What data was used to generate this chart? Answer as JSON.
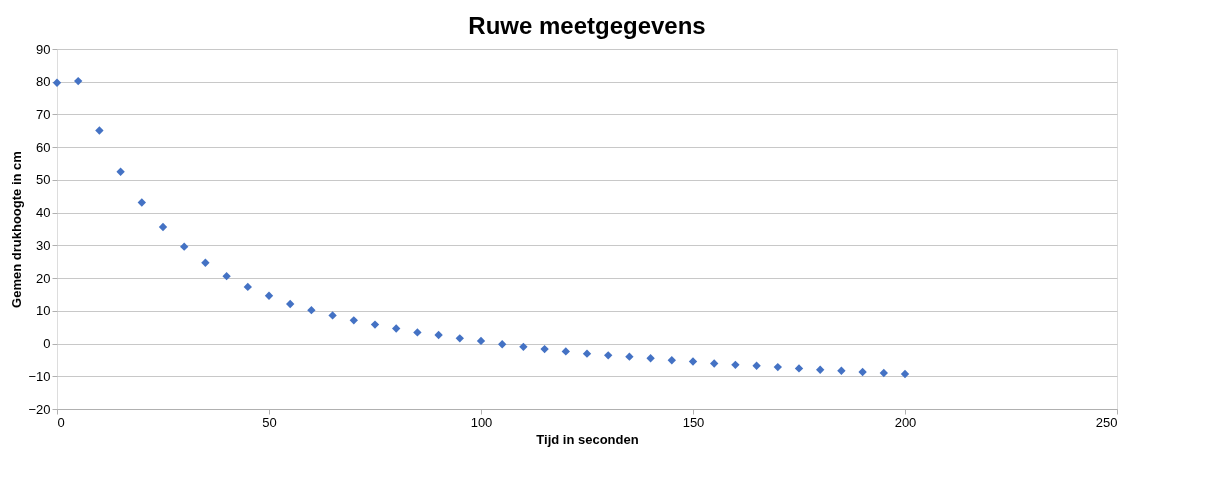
{
  "chart_data": {
    "type": "scatter",
    "title": "Ruwe meetgegevens",
    "xlabel": "Tijd in seconden",
    "ylabel": "Gemen drukhoogte in cm",
    "x": [
      0,
      5,
      10,
      15,
      20,
      25,
      30,
      35,
      40,
      45,
      50,
      55,
      60,
      65,
      70,
      75,
      80,
      85,
      90,
      95,
      100,
      105,
      110,
      115,
      120,
      125,
      130,
      135,
      140,
      145,
      150,
      155,
      160,
      165,
      170,
      175,
      180,
      185,
      190,
      195,
      200
    ],
    "series": [
      {
        "color": "#4472c4",
        "values": [
          79.7,
          80.2,
          65.1,
          52.5,
          43.1,
          35.6,
          29.6,
          24.7,
          20.6,
          17.3,
          14.6,
          12.1,
          10.2,
          8.6,
          7.1,
          5.8,
          4.6,
          3.4,
          2.6,
          1.6,
          0.8,
          -0.2,
          -1.0,
          -1.7,
          -2.4,
          -3.1,
          -3.6,
          -4.0,
          -4.5,
          -5.1,
          -5.5,
          -6.1,
          -6.5,
          -6.8,
          -7.2,
          -7.6,
          -8.0,
          -8.3,
          -8.7,
          -9.0,
          -9.3
        ]
      }
    ],
    "xlim": [
      0,
      250
    ],
    "xticks": [
      0,
      50,
      100,
      150,
      200,
      250
    ],
    "ylim": [
      -20,
      90
    ],
    "yticks": [
      -20,
      -10,
      0,
      10,
      20,
      30,
      40,
      50,
      60,
      70,
      80,
      90
    ],
    "grid": "y",
    "marker": "diamond"
  }
}
